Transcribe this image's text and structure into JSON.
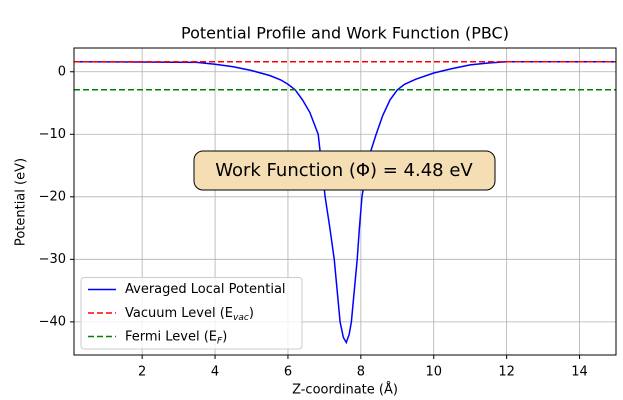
{
  "chart_data": {
    "type": "line",
    "title": "Potential Profile and Work Function (PBC)",
    "xlabel": "Z-coordinate (Å)",
    "ylabel": "Potential (eV)",
    "annotation": "Work Function (Φ) = 4.48 eV",
    "xlim": [
      0.13,
      15.0
    ],
    "ylim": [
      -45.3,
      3.8
    ],
    "xticks": [
      2,
      4,
      6,
      8,
      10,
      12,
      14
    ],
    "yticks": [
      {
        "value": -40,
        "label": "−40"
      },
      {
        "value": -30,
        "label": "−30"
      },
      {
        "value": -20,
        "label": "−20"
      },
      {
        "value": -10,
        "label": "−10"
      },
      0
    ],
    "grid": true,
    "legend": "lower left",
    "series": [
      {
        "name": "Averaged Local Potential",
        "color": "#0000ff",
        "style": "solid",
        "x": [
          0.13,
          3.5,
          4.0,
          4.5,
          5.0,
          5.5,
          5.8,
          6.0,
          6.2,
          6.4,
          6.6,
          6.83,
          7.02,
          7.15,
          7.27,
          7.35,
          7.43,
          7.52,
          7.6,
          7.68,
          7.74,
          7.82,
          7.9,
          7.96,
          8.03,
          8.2,
          8.42,
          8.6,
          8.8,
          9.0,
          9.2,
          9.5,
          10.0,
          10.5,
          11.0,
          11.5,
          12.0,
          15.0
        ],
        "values": [
          1.6,
          1.5,
          1.2,
          0.8,
          0.2,
          -0.6,
          -1.3,
          -2.0,
          -2.9,
          -4.5,
          -6.5,
          -10,
          -20,
          -25,
          -30,
          -35,
          -40,
          -42.5,
          -43.3,
          -42,
          -40,
          -35,
          -30,
          -25,
          -20,
          -14,
          -10,
          -7,
          -4.5,
          -2.9,
          -2.0,
          -1.2,
          -0.2,
          0.5,
          1.1,
          1.4,
          1.6,
          1.6
        ]
      },
      {
        "name": "Vacuum Level (E_vac)",
        "color": "#ff0000",
        "style": "dashed",
        "y": 1.6
      },
      {
        "name": "Fermi Level (E_F)",
        "color": "#008000",
        "style": "dashed",
        "y": -2.88
      }
    ]
  }
}
